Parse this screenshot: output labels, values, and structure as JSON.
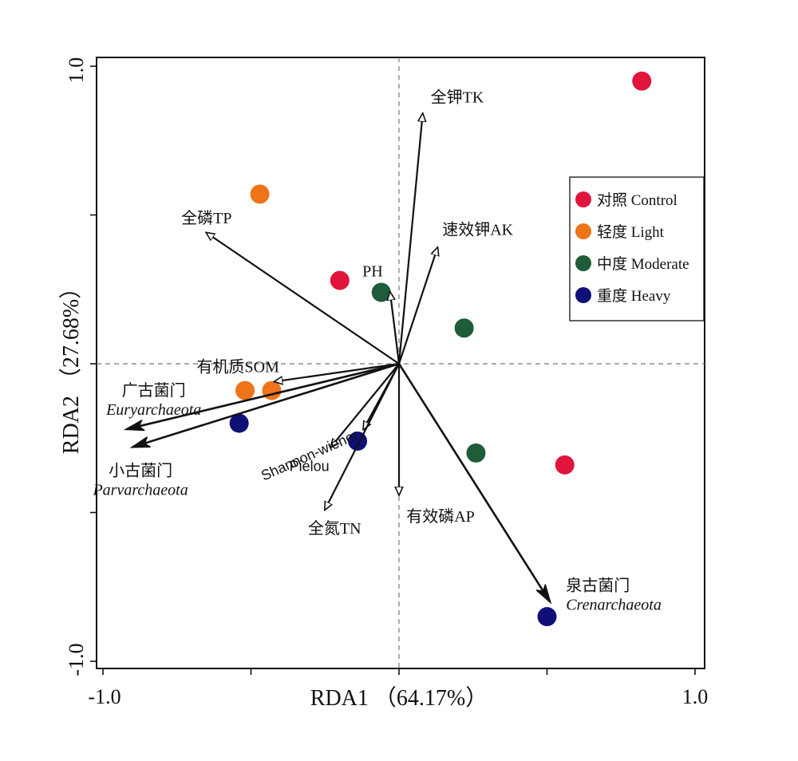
{
  "chart_data": {
    "type": "scatter",
    "subtype": "rda-biplot",
    "xlabel": "RDA1 （64.17%）",
    "ylabel": "RDA2 （27.68%）",
    "xlim": [
      -1.0,
      1.0
    ],
    "ylim": [
      -1.0,
      1.0
    ],
    "x_tick_labels": [
      "-1.0",
      "1.0"
    ],
    "y_tick_labels": [
      "1.0",
      "-1.0"
    ],
    "reference_lines": {
      "x": 0,
      "y": 0,
      "style": "dashed"
    },
    "legend_position": "right",
    "groups": [
      {
        "name": "对照 Control",
        "color": "#e0143c",
        "points": [
          [
            0.82,
            0.95
          ],
          [
            0.56,
            -0.34
          ],
          [
            -0.2,
            0.28
          ]
        ]
      },
      {
        "name": "轻度 Light",
        "color": "#ef7318",
        "points": [
          [
            -0.47,
            0.57
          ],
          [
            -0.52,
            -0.09
          ],
          [
            -0.43,
            -0.09
          ]
        ]
      },
      {
        "name": "中度 Moderate",
        "color": "#1f5c3a",
        "points": [
          [
            -0.06,
            0.24
          ],
          [
            0.22,
            0.12
          ],
          [
            0.26,
            -0.3
          ]
        ]
      },
      {
        "name": "重度 Heavy",
        "color": "#0f0f78",
        "points": [
          [
            -0.54,
            -0.2
          ],
          [
            -0.14,
            -0.26
          ],
          [
            0.5,
            -0.85
          ]
        ]
      }
    ],
    "environmental_vectors": [
      {
        "label": "全钾TK",
        "x": 0.08,
        "y": 0.84,
        "label_lines": [
          "全钾TK"
        ]
      },
      {
        "label": "速效钾AK",
        "x": 0.13,
        "y": 0.39,
        "label_lines": [
          "速效钾AK"
        ]
      },
      {
        "label": "全磷TP",
        "x": -0.65,
        "y": 0.44,
        "label_lines": [
          "全磷TP"
        ]
      },
      {
        "label": "PH",
        "x": -0.03,
        "y": 0.24,
        "label_lines": [
          "PH"
        ]
      },
      {
        "label": "有机质SOM",
        "x": -0.42,
        "y": -0.06,
        "label_lines": [
          "有机质SOM"
        ]
      },
      {
        "label": "Shannon-wiener",
        "x": -0.12,
        "y": -0.22,
        "label_lines": [
          "Shannon-wiener"
        ]
      },
      {
        "label": "Pielou",
        "x": -0.23,
        "y": -0.28,
        "label_lines": [
          "Pielou"
        ]
      },
      {
        "label": "全氮TN",
        "x": -0.25,
        "y": -0.49,
        "label_lines": [
          "全氮TN"
        ]
      },
      {
        "label": "有效磷AP",
        "x": 0.0,
        "y": -0.44,
        "label_lines": [
          "有效磷AP"
        ]
      }
    ],
    "species_vectors": [
      {
        "label": "广古菌门 Euryarchaeota",
        "x": -0.92,
        "y": -0.22,
        "label_lines": [
          "广古菌门",
          "Euryarchaeota"
        ]
      },
      {
        "label": "小古菌门 Parvarchaeota",
        "x": -0.9,
        "y": -0.28,
        "label_lines": [
          "小古菌门",
          "Parvarchaeota"
        ]
      },
      {
        "label": "泉古菌门 Crenarchaeota",
        "x": 0.51,
        "y": -0.8,
        "label_lines": [
          "泉古菌门",
          "Crenarchaeota"
        ]
      }
    ]
  }
}
